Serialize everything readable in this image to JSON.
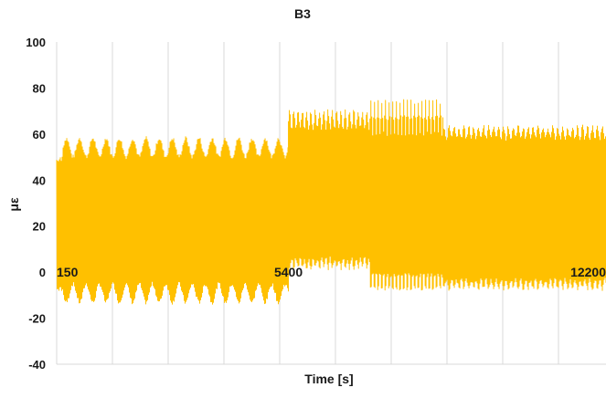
{
  "chart_data": {
    "type": "line",
    "title": "B3",
    "xlabel": "Time [s]",
    "ylabel": "με",
    "ylim": [
      -40,
      100
    ],
    "yticks": [
      -40,
      -20,
      0,
      20,
      40,
      60,
      80,
      100
    ],
    "grid": "vertical",
    "legend": "none",
    "annotations": [
      {
        "text": "150",
        "x": 150,
        "y": 0
      },
      {
        "text": "5400",
        "x": 5400,
        "y": 0
      },
      {
        "text": "12200",
        "x": 12200,
        "y": 0
      }
    ],
    "series": [
      {
        "color": "#FFC000",
        "segments": [
          {
            "t_start": 150,
            "t_end": 5400,
            "upper_min": 50,
            "upper_max": 58,
            "lower_min": -13,
            "lower_max": -5,
            "cycles": 17
          },
          {
            "t_start": 5400,
            "t_end": 7300,
            "upper_min": 62,
            "upper_max": 70,
            "lower_min": 2,
            "lower_max": 6,
            "cycles": 19
          },
          {
            "t_start": 7300,
            "t_end": 9000,
            "upper_min": 60,
            "upper_max": 74,
            "lower_min": -8,
            "lower_max": 0,
            "cycles": 20
          },
          {
            "t_start": 9000,
            "t_end": 12800,
            "upper_min": 58,
            "upper_max": 63,
            "lower_min": -7,
            "lower_max": -3,
            "cycles": 33
          }
        ]
      }
    ]
  }
}
